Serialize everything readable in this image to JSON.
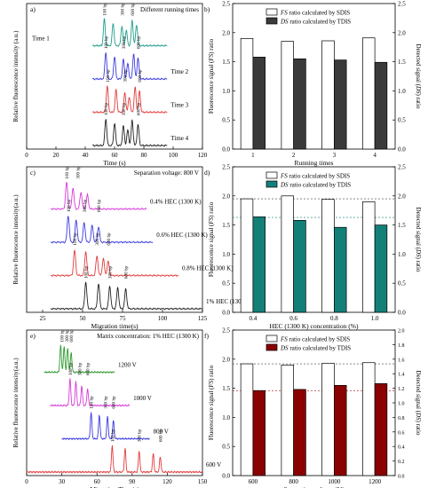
{
  "colors": {
    "teal": "#1f9e8c",
    "blue": "#3a3adf",
    "red": "#e23b3b",
    "black": "#202020",
    "magenta": "#d83ad8",
    "green": "#2e9a2e",
    "dark_gray_bar": "#3a3a3a",
    "teal_bar": "#138078",
    "dark_red_bar": "#8b0000"
  },
  "chart_data": [
    {
      "panel": "a)",
      "type": "line",
      "annotation": "Different running times",
      "xlabel": "Time (s)",
      "ylabel": "Relative fluorescence intensity (a.u.)",
      "xlim": [
        0,
        120
      ],
      "xticks": [
        0,
        20,
        40,
        60,
        80,
        100,
        120
      ],
      "series": [
        {
          "name": "Time 1",
          "color": "#1f9e8c",
          "x_start": 45,
          "x_end": 96,
          "peaks": [
            {
              "x": 53,
              "h": 0.95
            },
            {
              "x": 59,
              "h": 0.8
            },
            {
              "x": 65,
              "h": 0.7
            },
            {
              "x": 68,
              "h": 0.55
            },
            {
              "x": 72,
              "h": 0.9
            },
            {
              "x": 75,
              "h": 0.75
            }
          ],
          "peak_labels": [
            {
              "x": 53,
              "text": "100 bp"
            },
            {
              "x": 65,
              "text": "300 bp"
            },
            {
              "x": 72,
              "text": "600 bp"
            }
          ]
        },
        {
          "name": "Time 2",
          "color": "#3a3adf",
          "x_start": 45,
          "x_end": 96,
          "peaks": [
            {
              "x": 54,
              "h": 0.95
            },
            {
              "x": 60,
              "h": 0.8
            },
            {
              "x": 66,
              "h": 0.7
            },
            {
              "x": 69,
              "h": 0.55
            },
            {
              "x": 73,
              "h": 0.9
            },
            {
              "x": 76,
              "h": 0.75
            }
          ],
          "peak_labels": [
            {
              "x": 54,
              "text": "100 bp"
            },
            {
              "x": 66,
              "text": "300 bp"
            },
            {
              "x": 76,
              "text": "600 bp"
            }
          ]
        },
        {
          "name": "Time 3",
          "color": "#e23b3b",
          "x_start": 45,
          "x_end": 96,
          "peaks": [
            {
              "x": 55,
              "h": 0.95
            },
            {
              "x": 61,
              "h": 0.8
            },
            {
              "x": 67,
              "h": 0.7
            },
            {
              "x": 70,
              "h": 0.55
            },
            {
              "x": 74,
              "h": 0.9
            },
            {
              "x": 77,
              "h": 0.75
            }
          ],
          "peak_labels": [
            {
              "x": 55,
              "text": "100 bp"
            },
            {
              "x": 67,
              "text": "300 bp"
            },
            {
              "x": 77,
              "text": "600 bp"
            }
          ]
        },
        {
          "name": "Time 4",
          "color": "#202020",
          "x_start": 45,
          "x_end": 96,
          "peaks": [
            {
              "x": 54,
              "h": 0.95
            },
            {
              "x": 60,
              "h": 0.8
            },
            {
              "x": 66,
              "h": 0.7
            },
            {
              "x": 69,
              "h": 0.55
            },
            {
              "x": 72,
              "h": 0.9
            },
            {
              "x": 76,
              "h": 0.75
            }
          ],
          "peak_labels": [
            {
              "x": 54,
              "text": "100 bp"
            },
            {
              "x": 66,
              "text": "300 bp"
            },
            {
              "x": 76,
              "text": "600 bp"
            }
          ]
        }
      ]
    },
    {
      "panel": "b)",
      "type": "bar",
      "xlabel": "Running times",
      "ylabel": "Fluorescence signal (FS) ratio",
      "ylabel_right": "Detected signal (DS) ratio",
      "categories": [
        "1",
        "2",
        "3",
        "4"
      ],
      "ylim": [
        0,
        2.5
      ],
      "yticks": [
        "0.0",
        "0.5",
        "1.0",
        "1.5",
        "2.0",
        "2.5"
      ],
      "legend": "top-right",
      "series": [
        {
          "name": "FS ratio calculated by SDIS",
          "fill": "#ffffff",
          "values": [
            1.9,
            1.85,
            1.86,
            1.91
          ]
        },
        {
          "name": "DS ratio calculated by TDIS",
          "fill": "#3a3a3a",
          "values": [
            1.58,
            1.55,
            1.53,
            1.49
          ]
        }
      ]
    },
    {
      "panel": "c)",
      "type": "line",
      "annotation": "Separation voltage: 800 V",
      "xlabel": "Migration time(s)",
      "ylabel": "Relative fluorescence intensity(a.u.)",
      "xlim": [
        15,
        125
      ],
      "xticks": [
        25,
        50,
        75,
        100,
        125
      ],
      "series": [
        {
          "name": "0.4% HEC (1300 K)",
          "color": "#d83ad8",
          "x_start": 30,
          "x_end": 90,
          "peaks": [
            {
              "x": 40,
              "h": 0.95
            },
            {
              "x": 44,
              "h": 0.75
            },
            {
              "x": 49,
              "h": 0.6
            },
            {
              "x": 53,
              "h": 0.5
            }
          ],
          "peak_labels": [
            {
              "x": 40,
              "text": "100 bp"
            },
            {
              "x": 47,
              "text": "300 bp"
            }
          ]
        },
        {
          "name": "0.6% HEC (1300 K)",
          "color": "#3a3adf",
          "x_start": 30,
          "x_end": 94,
          "peaks": [
            {
              "x": 41,
              "h": 0.95
            },
            {
              "x": 46,
              "h": 0.8
            },
            {
              "x": 51,
              "h": 0.7
            },
            {
              "x": 56,
              "h": 0.6
            },
            {
              "x": 60,
              "h": 0.55
            }
          ],
          "peak_labels": [
            {
              "x": 41,
              "text": "100 bp"
            },
            {
              "x": 51,
              "text": "300 bp"
            },
            {
              "x": 60,
              "text": "600 bp"
            }
          ]
        },
        {
          "name": "0.8% HEC (1300 K)",
          "color": "#e23b3b",
          "x_start": 30,
          "x_end": 110,
          "peaks": [
            {
              "x": 45,
              "h": 0.9
            },
            {
              "x": 52,
              "h": 0.85
            },
            {
              "x": 59,
              "h": 0.7
            },
            {
              "x": 63,
              "h": 0.6
            },
            {
              "x": 66,
              "h": 0.5
            }
          ],
          "peak_labels": [
            {
              "x": 45,
              "text": "100 bp"
            },
            {
              "x": 59,
              "text": "300 bp"
            },
            {
              "x": 66,
              "text": "600 bp"
            }
          ]
        },
        {
          "name": "1% HEC (1300 K)",
          "color": "#202020",
          "x_start": 30,
          "x_end": 125,
          "peaks": [
            {
              "x": 52,
              "h": 0.95
            },
            {
              "x": 60,
              "h": 0.9
            },
            {
              "x": 67,
              "h": 0.8
            },
            {
              "x": 72,
              "h": 0.75
            },
            {
              "x": 77,
              "h": 0.7
            }
          ],
          "peak_labels": [
            {
              "x": 52,
              "text": "100 bp"
            },
            {
              "x": 67,
              "text": "300 bp"
            },
            {
              "x": 77,
              "text": "600 bp"
            }
          ]
        }
      ]
    },
    {
      "panel": "d)",
      "type": "bar",
      "xlabel": "HEC (1300 K) concentration (%)",
      "ylabel": "Fluorescence signal (FS) ratio",
      "ylabel_right": "Detected signal (DS) ratio",
      "categories": [
        "0.4",
        "0.6",
        "0.8",
        "1.0"
      ],
      "ylim": [
        0,
        2.5
      ],
      "yticks": [
        "0.0",
        "0.5",
        "1.0",
        "1.5",
        "2.0",
        "2.5"
      ],
      "legend": "top-right",
      "reference_lines": [
        {
          "y": 1.95,
          "color": "#444444"
        },
        {
          "y": 1.63,
          "color": "#138078"
        }
      ],
      "series": [
        {
          "name": "FS ratio calculated by SDIS",
          "fill": "#ffffff",
          "values": [
            1.95,
            2.0,
            1.94,
            1.9
          ]
        },
        {
          "name": "DS ratio calculated by TDIS",
          "fill": "#138078",
          "values": [
            1.64,
            1.58,
            1.46,
            1.5
          ]
        }
      ]
    },
    {
      "panel": "e)",
      "type": "line",
      "annotation": "Matrix concentration: 1% HEC (1300 K)",
      "xlabel": "Migration Time(s)",
      "ylabel": "Relative fluorescence intensity(a.u.)",
      "xlim": [
        0,
        150
      ],
      "xticks": [
        0,
        30,
        60,
        90,
        120,
        150
      ],
      "series": [
        {
          "name": "1200 V",
          "color": "#2e9a2e",
          "x_start": 15,
          "x_end": 75,
          "peaks": [
            {
              "x": 29,
              "h": 0.95
            },
            {
              "x": 32,
              "h": 0.9
            },
            {
              "x": 35,
              "h": 0.85
            },
            {
              "x": 38,
              "h": 0.7
            }
          ],
          "peak_labels": [
            {
              "x": 30,
              "text": "100 bp"
            },
            {
              "x": 34,
              "text": "300 bp"
            },
            {
              "x": 38,
              "text": "600 bp"
            }
          ]
        },
        {
          "name": "1000 V",
          "color": "#d83ad8",
          "x_start": 20,
          "x_end": 88,
          "peaks": [
            {
              "x": 37,
              "h": 0.95
            },
            {
              "x": 42,
              "h": 0.85
            },
            {
              "x": 47,
              "h": 0.7
            },
            {
              "x": 52,
              "h": 0.6
            }
          ],
          "peak_labels": [
            {
              "x": 37,
              "text": "100 bp"
            },
            {
              "x": 45,
              "text": "300 bp"
            },
            {
              "x": 52,
              "text": "600 bp"
            }
          ]
        },
        {
          "name": "800 V",
          "color": "#3a3adf",
          "x_start": 30,
          "x_end": 105,
          "peaks": [
            {
              "x": 55,
              "h": 0.95
            },
            {
              "x": 62,
              "h": 0.85
            },
            {
              "x": 69,
              "h": 0.8
            },
            {
              "x": 74,
              "h": 0.65
            }
          ],
          "peak_labels": [
            {
              "x": 55,
              "text": "100 bp"
            },
            {
              "x": 67,
              "text": "300 bp"
            },
            {
              "x": 74,
              "text": "600 bp"
            }
          ]
        },
        {
          "name": "600 V",
          "color": "#e23b3b",
          "x_start": 0,
          "x_end": 150,
          "peaks": [
            {
              "x": 73,
              "h": 0.95
            },
            {
              "x": 84,
              "h": 0.85
            },
            {
              "x": 96,
              "h": 0.75
            },
            {
              "x": 108,
              "h": 0.65
            },
            {
              "x": 114,
              "h": 0.55
            }
          ],
          "peak_labels": [
            {
              "x": 73,
              "text": "100 bp"
            },
            {
              "x": 96,
              "text": "300 bp"
            },
            {
              "x": 114,
              "text": "600 bp"
            }
          ]
        }
      ]
    },
    {
      "panel": "f)",
      "type": "bar",
      "xlabel": "Separation voltage (V)",
      "ylabel": "Fluorescence signal (FS) ratio",
      "ylabel_right": "Detected signal (DS) ratio",
      "categories": [
        "600",
        "800",
        "1000",
        "1200"
      ],
      "ylim": [
        0,
        2.5
      ],
      "yticks": [
        "0.0",
        "0.5",
        "1.0",
        "1.5",
        "2.0",
        "2.5"
      ],
      "yticks_right": [
        "0.0",
        "0.2",
        "0.4",
        "0.6",
        "0.8",
        "1.0",
        "1.2",
        "1.4",
        "1.6",
        "1.8",
        "2.0"
      ],
      "legend": "top-right",
      "reference_lines": [
        {
          "y": 1.92,
          "color": "#444444"
        },
        {
          "y": 1.46,
          "color": "#b03030"
        }
      ],
      "series": [
        {
          "name": "FS ratio calculated by SDIS",
          "fill": "#ffffff",
          "values": [
            1.92,
            1.9,
            1.93,
            1.94
          ]
        },
        {
          "name": "DS ratio calculated by TDIS",
          "fill": "#8b0000",
          "values": [
            1.46,
            1.48,
            1.55,
            1.58
          ]
        }
      ]
    }
  ]
}
